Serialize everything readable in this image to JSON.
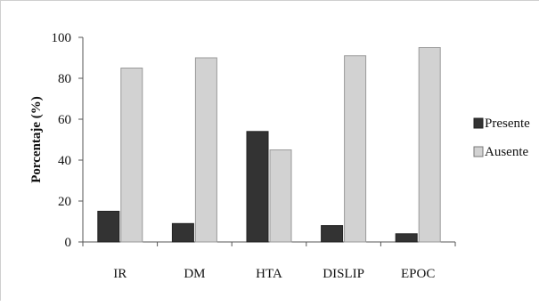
{
  "chart_data": {
    "type": "bar",
    "categories": [
      "IR",
      "DM",
      "HTA",
      "DISLIP",
      "EPOC"
    ],
    "series": [
      {
        "name": "Presente",
        "values": [
          15,
          9,
          54,
          8,
          4
        ],
        "color": "#333333"
      },
      {
        "name": "Ausente",
        "values": [
          85,
          90,
          45,
          91,
          95
        ],
        "color": "#d2d2d2"
      }
    ],
    "ylabel": "Porcentaje (%)",
    "xlabel": "",
    "ylim": [
      0,
      100
    ],
    "yticks": [
      0,
      20,
      40,
      60,
      80,
      100
    ],
    "grid": false,
    "legend_position": "right"
  }
}
